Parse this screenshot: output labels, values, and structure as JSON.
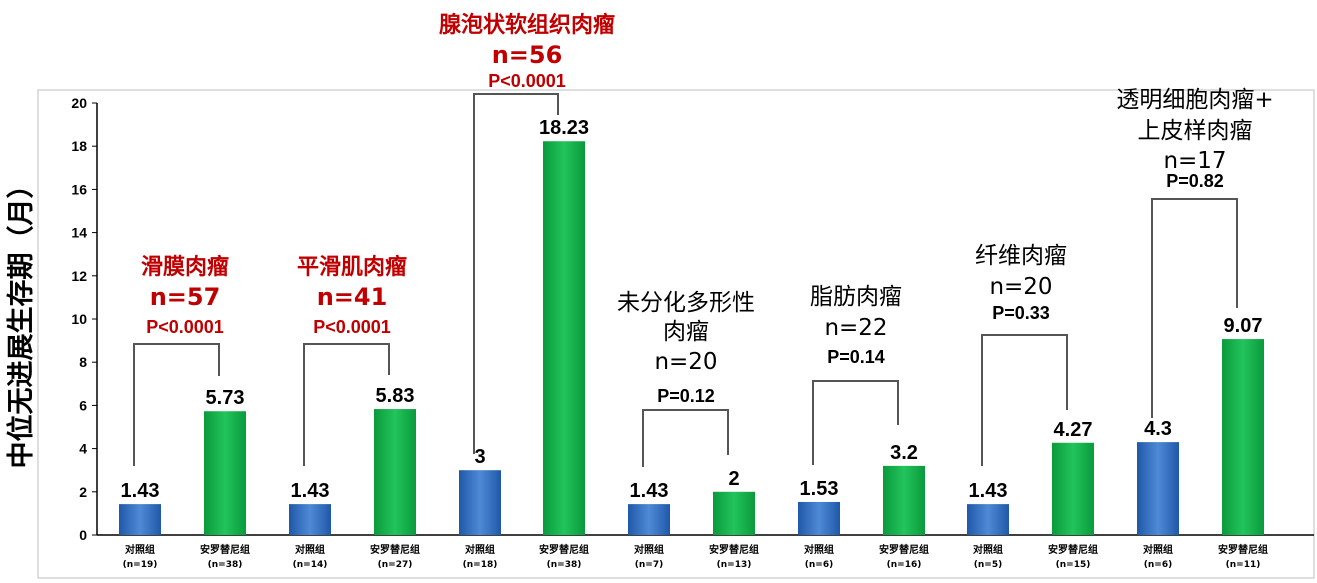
{
  "chart_data": {
    "type": "bar",
    "ylabel": "中位无进展生存期（月）",
    "ylim": [
      0,
      20
    ],
    "yticks": [
      "0",
      "2",
      "4",
      "6",
      "8",
      "10",
      "12",
      "14",
      "16",
      "18",
      "20"
    ],
    "grid": false,
    "colors": {
      "control": "#2e6bbf",
      "treatment": "#10b04a",
      "title_red": "#c00000",
      "bracket": "#555555"
    },
    "bars": [
      {
        "category": "对照组",
        "n": "(n=19)",
        "value": 1.43,
        "label": "1.43",
        "group": "control"
      },
      {
        "category": "安罗替尼组",
        "n": "(n=38)",
        "value": 5.73,
        "label": "5.73",
        "group": "treatment"
      },
      {
        "category": "对照组",
        "n": "(n=14)",
        "value": 1.43,
        "label": "1.43",
        "group": "control"
      },
      {
        "category": "安罗替尼组",
        "n": "(n=27)",
        "value": 5.83,
        "label": "5.83",
        "group": "treatment"
      },
      {
        "category": "对照组",
        "n": "(n=18)",
        "value": 3,
        "label": "3",
        "group": "control"
      },
      {
        "category": "安罗替尼组",
        "n": "(n=38)",
        "value": 18.23,
        "label": "18.23",
        "group": "treatment"
      },
      {
        "category": "对照组",
        "n": "(n=7)",
        "value": 1.43,
        "label": "1.43",
        "group": "control"
      },
      {
        "category": "安罗替尼组",
        "n": "(n=13)",
        "value": 2,
        "label": "2",
        "group": "treatment"
      },
      {
        "category": "对照组",
        "n": "(n=6)",
        "value": 1.53,
        "label": "1.53",
        "group": "control"
      },
      {
        "category": "安罗替尼组",
        "n": "(n=16)",
        "value": 3.2,
        "label": "3.2",
        "group": "treatment"
      },
      {
        "category": "对照组",
        "n": "(n=5)",
        "value": 1.43,
        "label": "1.43",
        "group": "control"
      },
      {
        "category": "安罗替尼组",
        "n": "(n=15)",
        "value": 4.27,
        "label": "4.27",
        "group": "treatment"
      },
      {
        "category": "对照组",
        "n": "(n=6)",
        "value": 4.3,
        "label": "4.3",
        "group": "control"
      },
      {
        "category": "安罗替尼组",
        "n": "(n=11)",
        "value": 9.07,
        "label": "9.07",
        "group": "treatment"
      }
    ],
    "annotations": [
      {
        "lines": [
          "滑膜肉瘤",
          "n=57"
        ],
        "p": "P<0.0001",
        "highlight": true
      },
      {
        "lines": [
          "平滑肌肉瘤",
          "n=41"
        ],
        "p": "P<0.0001",
        "highlight": true
      },
      {
        "lines": [
          "腺泡状软组织肉瘤",
          "n=56"
        ],
        "p": "P<0.0001",
        "highlight": true
      },
      {
        "lines": [
          "未分化多形性",
          "肉瘤",
          "n=20"
        ],
        "p": "P=0.12",
        "highlight": false
      },
      {
        "lines": [
          "脂肪肉瘤",
          "n=22"
        ],
        "p": "P=0.14",
        "highlight": false
      },
      {
        "lines": [
          "纤维肉瘤",
          "n=20"
        ],
        "p": "P=0.33",
        "highlight": false
      },
      {
        "lines": [
          "透明细胞肉瘤+",
          "上皮样肉瘤",
          "n=17"
        ],
        "p": "P=0.82",
        "highlight": false
      }
    ]
  }
}
